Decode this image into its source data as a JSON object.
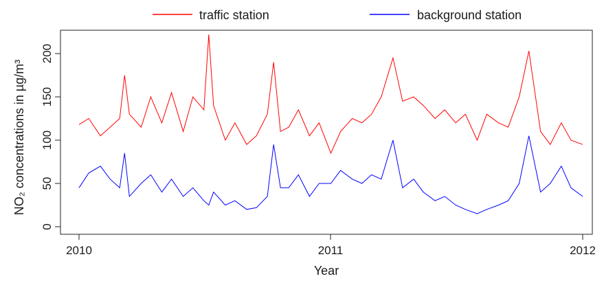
{
  "chart_data": {
    "type": "line",
    "title": "",
    "xlabel": "Year",
    "ylabel": "NO₂ concentrations in µg/m³",
    "xlim": [
      "2010-01-01",
      "2012-01-01"
    ],
    "ylim": [
      0,
      220
    ],
    "x_ticks": [
      "2010",
      "2011",
      "2012"
    ],
    "y_ticks": [
      0,
      50,
      100,
      150,
      200
    ],
    "grid": false,
    "legend_position": "top, outside plot area",
    "series": [
      {
        "name": "traffic station",
        "color": "#ff0000",
        "x": [
          "2010-01-01",
          "2010-01-15",
          "2010-02-01",
          "2010-02-15",
          "2010-03-01",
          "2010-03-08",
          "2010-03-15",
          "2010-04-01",
          "2010-04-15",
          "2010-05-01",
          "2010-05-15",
          "2010-06-01",
          "2010-06-15",
          "2010-07-01",
          "2010-07-08",
          "2010-07-15",
          "2010-08-01",
          "2010-08-15",
          "2010-09-01",
          "2010-09-15",
          "2010-10-01",
          "2010-10-10",
          "2010-10-20",
          "2010-11-01",
          "2010-11-15",
          "2010-12-01",
          "2010-12-15",
          "2011-01-01",
          "2011-01-15",
          "2011-02-01",
          "2011-02-15",
          "2011-03-01",
          "2011-03-15",
          "2011-04-01",
          "2011-04-15",
          "2011-05-01",
          "2011-05-15",
          "2011-06-01",
          "2011-06-15",
          "2011-07-01",
          "2011-07-15",
          "2011-08-01",
          "2011-08-15",
          "2011-09-01",
          "2011-09-15",
          "2011-10-01",
          "2011-10-15",
          "2011-11-01",
          "2011-11-15",
          "2011-12-01",
          "2011-12-15",
          "2012-01-01"
        ],
        "values": [
          118,
          125,
          105,
          115,
          125,
          175,
          130,
          115,
          150,
          120,
          155,
          110,
          150,
          135,
          222,
          140,
          100,
          120,
          95,
          105,
          130,
          190,
          110,
          115,
          135,
          105,
          120,
          85,
          110,
          125,
          120,
          130,
          150,
          195,
          145,
          150,
          140,
          125,
          135,
          120,
          130,
          100,
          130,
          120,
          115,
          150,
          203,
          110,
          95,
          120,
          100,
          95
        ]
      },
      {
        "name": "background station",
        "color": "#0000ff",
        "x": [
          "2010-01-01",
          "2010-01-15",
          "2010-02-01",
          "2010-02-15",
          "2010-03-01",
          "2010-03-08",
          "2010-03-15",
          "2010-04-01",
          "2010-04-15",
          "2010-05-01",
          "2010-05-15",
          "2010-06-01",
          "2010-06-15",
          "2010-07-01",
          "2010-07-08",
          "2010-07-15",
          "2010-08-01",
          "2010-08-15",
          "2010-09-01",
          "2010-09-15",
          "2010-10-01",
          "2010-10-10",
          "2010-10-20",
          "2010-11-01",
          "2010-11-15",
          "2010-12-01",
          "2010-12-15",
          "2011-01-01",
          "2011-01-15",
          "2011-02-01",
          "2011-02-15",
          "2011-03-01",
          "2011-03-15",
          "2011-04-01",
          "2011-04-15",
          "2011-05-01",
          "2011-05-15",
          "2011-06-01",
          "2011-06-15",
          "2011-07-01",
          "2011-07-15",
          "2011-08-01",
          "2011-08-15",
          "2011-09-01",
          "2011-09-15",
          "2011-10-01",
          "2011-10-15",
          "2011-11-01",
          "2011-11-15",
          "2011-12-01",
          "2011-12-15",
          "2012-01-01"
        ],
        "values": [
          45,
          62,
          70,
          55,
          45,
          85,
          35,
          50,
          60,
          40,
          55,
          35,
          45,
          30,
          25,
          40,
          25,
          30,
          20,
          22,
          35,
          95,
          45,
          45,
          60,
          35,
          50,
          50,
          65,
          55,
          50,
          60,
          55,
          100,
          45,
          55,
          40,
          30,
          35,
          25,
          20,
          15,
          20,
          25,
          30,
          50,
          105,
          40,
          50,
          70,
          45,
          35
        ]
      }
    ]
  }
}
